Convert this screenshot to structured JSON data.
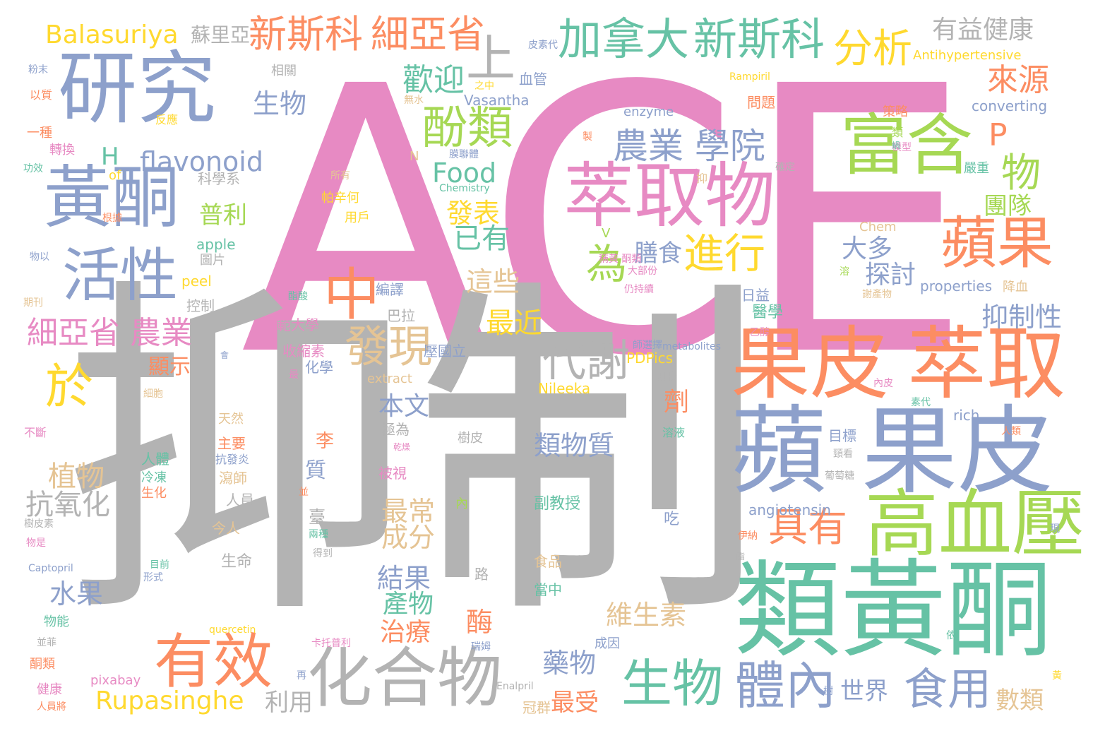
{
  "palette": {
    "pink": "#e78ac3",
    "gray": "#b3b3b3",
    "blue": "#8da0cb",
    "green": "#66c2a5",
    "orange": "#fc8d62",
    "lime": "#a6d854",
    "yellow": "#ffd92f",
    "tan": "#e5c494"
  },
  "words": [
    {
      "t": "ACE",
      "c": "pink"
    },
    {
      "t": "抑制",
      "c": "gray"
    },
    {
      "t": "研究",
      "c": "blue"
    },
    {
      "t": "黃酮",
      "c": "blue"
    },
    {
      "t": "活性",
      "c": "blue"
    },
    {
      "t": "萃取物",
      "c": "pink"
    },
    {
      "t": "富含",
      "c": "lime"
    },
    {
      "t": "蘋果",
      "c": "orange"
    },
    {
      "t": "果皮",
      "c": "orange"
    },
    {
      "t": "萃取",
      "c": "orange"
    },
    {
      "t": "蘋",
      "c": "blue"
    },
    {
      "t": "果皮",
      "c": "blue"
    },
    {
      "t": "類黃酮",
      "c": "green"
    },
    {
      "t": "高血壓",
      "c": "lime"
    },
    {
      "t": "化合物",
      "c": "gray"
    },
    {
      "t": "有效",
      "c": "orange"
    },
    {
      "t": "生物",
      "c": "green"
    },
    {
      "t": "體內",
      "c": "blue"
    },
    {
      "t": "食用",
      "c": "blue"
    },
    {
      "t": "新斯科",
      "c": "orange"
    },
    {
      "t": "細亞省",
      "c": "orange"
    },
    {
      "t": "加拿大",
      "c": "green"
    },
    {
      "t": "新斯科",
      "c": "green"
    },
    {
      "t": "分析",
      "c": "yellow"
    },
    {
      "t": "有益健康",
      "c": "gray"
    },
    {
      "t": "Balasuriya",
      "c": "yellow"
    },
    {
      "t": "蘇里亞",
      "c": "gray"
    },
    {
      "t": "上",
      "c": "gray"
    },
    {
      "t": "農業 學院",
      "c": "blue"
    },
    {
      "t": "酚類",
      "c": "lime"
    },
    {
      "t": "中",
      "c": "orange"
    },
    {
      "t": "為",
      "c": "lime"
    },
    {
      "t": "進行",
      "c": "yellow"
    },
    {
      "t": "發現",
      "c": "tan"
    },
    {
      "t": "代謝",
      "c": "gray"
    },
    {
      "t": "細亞省 農業",
      "c": "pink"
    },
    {
      "t": "於",
      "c": "yellow"
    },
    {
      "t": "P",
      "c": "orange"
    },
    {
      "t": "物",
      "c": "lime"
    },
    {
      "t": "具有",
      "c": "orange"
    },
    {
      "t": "來源",
      "c": "orange"
    },
    {
      "t": "歡迎",
      "c": "green"
    },
    {
      "t": "生物",
      "c": "blue"
    },
    {
      "t": "flavonoid",
      "c": "blue"
    },
    {
      "t": "H",
      "c": "green"
    },
    {
      "t": "Food",
      "c": "green"
    },
    {
      "t": "普利",
      "c": "lime"
    },
    {
      "t": "已有",
      "c": "green"
    },
    {
      "t": "發表",
      "c": "yellow"
    },
    {
      "t": "這些",
      "c": "tan"
    },
    {
      "t": "最近",
      "c": "yellow"
    },
    {
      "t": "大多",
      "c": "blue"
    },
    {
      "t": "探討",
      "c": "blue"
    },
    {
      "t": "膳食",
      "c": "blue"
    },
    {
      "t": "抑制性",
      "c": "blue"
    },
    {
      "t": "團隊",
      "c": "lime"
    },
    {
      "t": "Rupasinghe",
      "c": "yellow"
    },
    {
      "t": "本文",
      "c": "blue"
    },
    {
      "t": "類物質",
      "c": "blue"
    },
    {
      "t": "植物",
      "c": "tan"
    },
    {
      "t": "抗氧化",
      "c": "gray"
    },
    {
      "t": "水果",
      "c": "blue"
    },
    {
      "t": "最常",
      "c": "tan"
    },
    {
      "t": "成分",
      "c": "tan"
    },
    {
      "t": "結果",
      "c": "blue"
    },
    {
      "t": "產物",
      "c": "green"
    },
    {
      "t": "治療",
      "c": "orange"
    },
    {
      "t": "酶",
      "c": "orange"
    },
    {
      "t": "藥物",
      "c": "blue"
    },
    {
      "t": "維生素",
      "c": "tan"
    },
    {
      "t": "最受",
      "c": "orange"
    },
    {
      "t": "世界",
      "c": "blue"
    },
    {
      "t": "數類",
      "c": "tan"
    },
    {
      "t": "利用",
      "c": "gray"
    },
    {
      "t": "顯示",
      "c": "orange"
    },
    {
      "t": "劑",
      "c": "orange"
    },
    {
      "t": "angiotensin",
      "c": "blue"
    },
    {
      "t": "Antihypertensive",
      "c": "yellow"
    },
    {
      "t": "converting",
      "c": "blue"
    },
    {
      "t": "enzyme",
      "c": "blue"
    },
    {
      "t": "Vasantha",
      "c": "blue"
    },
    {
      "t": "properties",
      "c": "blue"
    },
    {
      "t": "extract",
      "c": "tan"
    },
    {
      "t": "Nileeka",
      "c": "yellow"
    },
    {
      "t": "apple",
      "c": "green"
    },
    {
      "t": "peel",
      "c": "yellow"
    },
    {
      "t": "rich",
      "c": "blue"
    },
    {
      "t": "PDPics",
      "c": "yellow"
    },
    {
      "t": "pixabay",
      "c": "pink"
    },
    {
      "t": "Chem",
      "c": "tan"
    },
    {
      "t": "of",
      "c": "yellow"
    },
    {
      "t": "N",
      "c": "tan"
    },
    {
      "t": "V",
      "c": "lime"
    },
    {
      "t": "Captopril",
      "c": "blue"
    },
    {
      "t": "quercetin",
      "c": "yellow"
    },
    {
      "t": "Enalpril",
      "c": "gray"
    },
    {
      "t": "Rampiril",
      "c": "yellow"
    },
    {
      "t": "Chemistry",
      "c": "green"
    },
    {
      "t": "metabolites",
      "c": "blue"
    },
    {
      "t": "醫學",
      "c": "green"
    },
    {
      "t": "日益",
      "c": "blue"
    },
    {
      "t": "問題",
      "c": "orange"
    },
    {
      "t": "策略",
      "c": "orange"
    },
    {
      "t": "嚴重",
      "c": "green"
    },
    {
      "t": "降血",
      "c": "tan"
    },
    {
      "t": "目標",
      "c": "blue"
    },
    {
      "t": "副教授",
      "c": "green"
    },
    {
      "t": "吃",
      "c": "blue"
    },
    {
      "t": "食品",
      "c": "tan"
    },
    {
      "t": "當中",
      "c": "green"
    },
    {
      "t": "成因",
      "c": "blue"
    },
    {
      "t": "冠群",
      "c": "tan"
    },
    {
      "t": "路",
      "c": "gray"
    },
    {
      "t": "李",
      "c": "orange"
    },
    {
      "t": "質",
      "c": "blue"
    },
    {
      "t": "臺",
      "c": "gray"
    },
    {
      "t": "極為",
      "c": "gray"
    },
    {
      "t": "被視",
      "c": "pink"
    },
    {
      "t": "樹皮",
      "c": "gray"
    },
    {
      "t": "內",
      "c": "lime"
    },
    {
      "t": "瀉師",
      "c": "tan"
    },
    {
      "t": "人員",
      "c": "gray"
    },
    {
      "t": "今人",
      "c": "tan"
    },
    {
      "t": "生命",
      "c": "gray"
    },
    {
      "t": "人體",
      "c": "green"
    },
    {
      "t": "冷凍",
      "c": "green"
    },
    {
      "t": "生化",
      "c": "orange"
    },
    {
      "t": "主要",
      "c": "orange"
    },
    {
      "t": "天然",
      "c": "tan"
    },
    {
      "t": "抗發炎",
      "c": "blue"
    },
    {
      "t": "收縮素",
      "c": "pink"
    },
    {
      "t": "化學",
      "c": "blue"
    },
    {
      "t": "範大學",
      "c": "pink"
    },
    {
      "t": "巴拉",
      "c": "gray"
    },
    {
      "t": "壓國立",
      "c": "blue"
    },
    {
      "t": "編譯",
      "c": "blue"
    },
    {
      "t": "控制",
      "c": "gray"
    },
    {
      "t": "圖片",
      "c": "gray"
    },
    {
      "t": "相關",
      "c": "gray"
    },
    {
      "t": "科學系",
      "c": "gray"
    },
    {
      "t": "用戶",
      "c": "yellow"
    },
    {
      "t": "帕辛何",
      "c": "yellow"
    },
    {
      "t": "所有",
      "c": "tan"
    },
    {
      "t": "無水",
      "c": "tan"
    },
    {
      "t": "之中",
      "c": "yellow"
    },
    {
      "t": "血管",
      "c": "blue"
    },
    {
      "t": "皮素代",
      "c": "blue"
    },
    {
      "t": "膜聯體",
      "c": "blue"
    },
    {
      "t": "確定",
      "c": "gray"
    },
    {
      "t": "抑",
      "c": "tan"
    },
    {
      "t": "粉末",
      "c": "blue"
    },
    {
      "t": "以質",
      "c": "orange"
    },
    {
      "t": "一種",
      "c": "orange"
    },
    {
      "t": "轉換",
      "c": "pink"
    },
    {
      "t": "功效",
      "c": "green"
    },
    {
      "t": "根據",
      "c": "orange"
    },
    {
      "t": "物以",
      "c": "blue"
    },
    {
      "t": "期刊",
      "c": "tan"
    },
    {
      "t": "反應",
      "c": "yellow"
    },
    {
      "t": "不斷",
      "c": "pink"
    },
    {
      "t": "樹皮素",
      "c": "gray"
    },
    {
      "t": "物是",
      "c": "pink"
    },
    {
      "t": "目前",
      "c": "green"
    },
    {
      "t": "形式",
      "c": "blue"
    },
    {
      "t": "物能",
      "c": "green"
    },
    {
      "t": "並菲",
      "c": "gray"
    },
    {
      "t": "酮類",
      "c": "orange"
    },
    {
      "t": "健康",
      "c": "pink"
    },
    {
      "t": "人員將",
      "c": "orange"
    },
    {
      "t": "細胞",
      "c": "tan"
    },
    {
      "t": "大部份",
      "c": "pink"
    },
    {
      "t": "仍持續",
      "c": "pink"
    },
    {
      "t": "稱黃 酮類",
      "c": "pink"
    },
    {
      "t": "師選擇",
      "c": "blue"
    },
    {
      "t": "謝物",
      "c": "gray"
    },
    {
      "t": "溶液",
      "c": "green"
    },
    {
      "t": "內皮",
      "c": "pink"
    },
    {
      "t": "素代",
      "c": "green"
    },
    {
      "t": "人類",
      "c": "orange"
    },
    {
      "t": "頸看",
      "c": "gray"
    },
    {
      "t": "葡萄糖",
      "c": "gray"
    },
    {
      "t": "伊納",
      "c": "orange"
    },
    {
      "t": "現",
      "c": "blue"
    },
    {
      "t": "乙醇",
      "c": "pink"
    },
    {
      "t": "謝產物",
      "c": "tan"
    },
    {
      "t": "溶",
      "c": "lime"
    },
    {
      "t": "類",
      "c": "lime"
    },
    {
      "t": "模型",
      "c": "pink"
    },
    {
      "t": "卡托普利",
      "c": "pink"
    },
    {
      "t": "瑞姆",
      "c": "blue"
    },
    {
      "t": "兩種",
      "c": "green"
    },
    {
      "t": "得到",
      "c": "gray"
    },
    {
      "t": "酯酸",
      "c": "green"
    },
    {
      "t": "製",
      "c": "orange"
    },
    {
      "t": "最",
      "c": "pink"
    },
    {
      "t": "會",
      "c": "blue"
    },
    {
      "t": "乾燥",
      "c": "pink"
    },
    {
      "t": "並",
      "c": "orange"
    },
    {
      "t": "再",
      "c": "blue"
    },
    {
      "t": "黃",
      "c": "yellow"
    },
    {
      "t": "樹",
      "c": "blue"
    },
    {
      "t": "依",
      "c": "green"
    },
    {
      "t": "酯",
      "c": "gray"
    },
    {
      "t": "蝸",
      "c": "green"
    }
  ]
}
